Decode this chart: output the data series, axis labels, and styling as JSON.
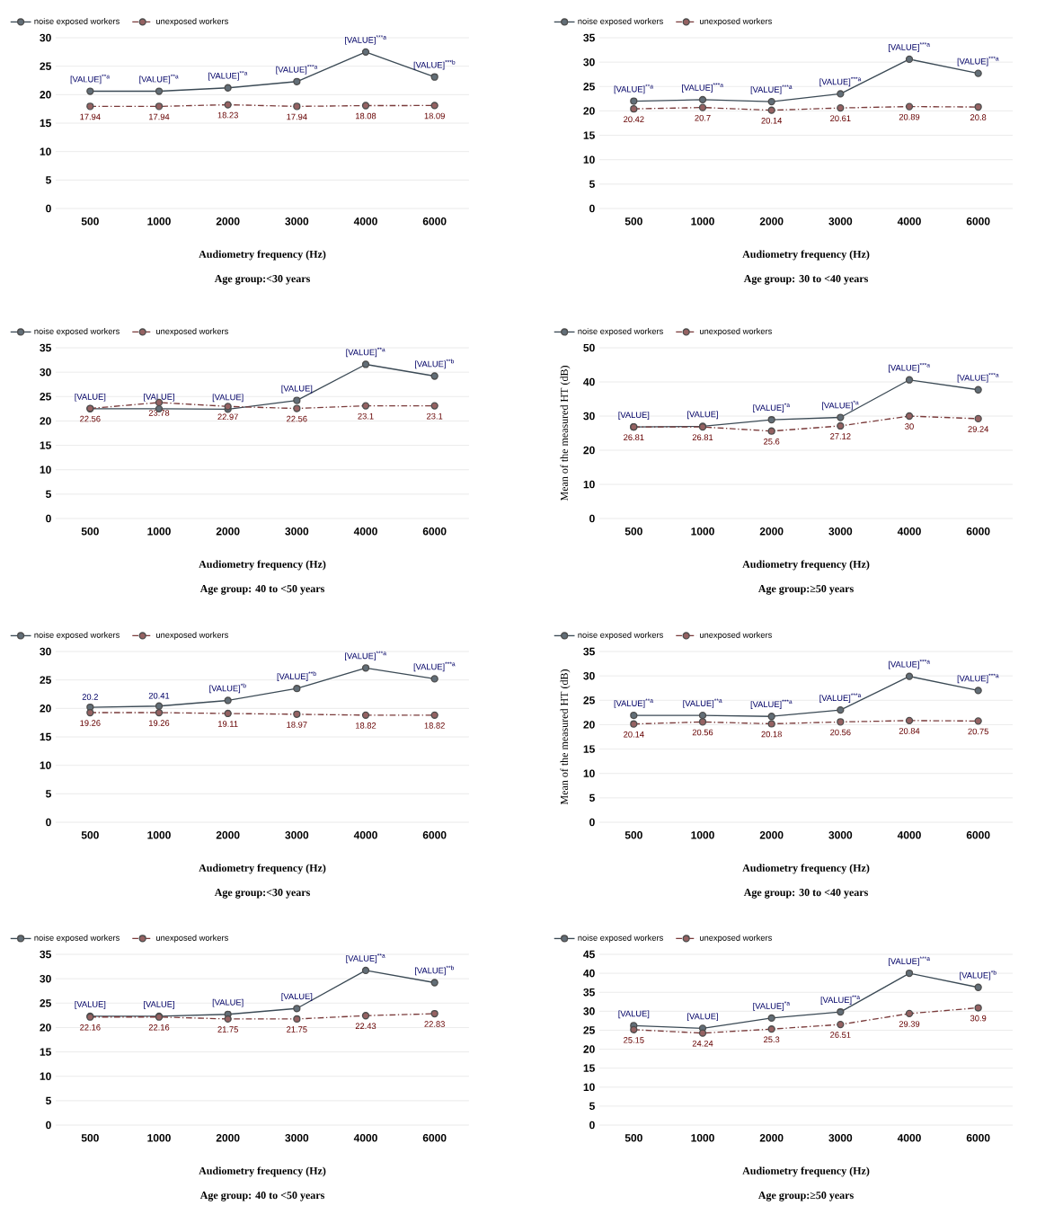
{
  "chart_data": [
    {
      "type": "line",
      "categories": [
        "500",
        "1000",
        "2000",
        "3000",
        "4000",
        "6000"
      ],
      "ylim": [
        0,
        30
      ],
      "yticks": [
        0,
        5,
        10,
        15,
        20,
        25,
        30
      ],
      "grid": "y",
      "legend": "top left",
      "marker": "circle",
      "xlabel": "Audiometry frequency (Hz)",
      "annotations": [
        "Age group:<30 years"
      ],
      "series": [
        {
          "name": "noise exposed workers",
          "color": "#3b4a55",
          "line_style": "solid",
          "values": [
            20.6,
            20.6,
            21.2,
            22.3,
            27.5,
            23.1
          ],
          "value_labels": [
            "[VALUE]$^{**a}$",
            "[VALUE]$^{**a}$",
            "[VALUE]$^{**a}$",
            "[VALUE]$^{***a}$",
            "[VALUE]$^{***a}$",
            "[VALUE]$^{***b}$"
          ]
        },
        {
          "name": "unexposed workers",
          "color": "#7a3b3b",
          "line_style": "dashed",
          "values": [
            17.94,
            17.94,
            18.23,
            17.94,
            18.08,
            18.09
          ],
          "value_labels": [
            "17.94",
            "17.94",
            "18.23",
            "17.94",
            "18.08",
            "18.09"
          ]
        }
      ]
    },
    {
      "type": "line",
      "categories": [
        "500",
        "1000",
        "2000",
        "3000",
        "4000",
        "6000"
      ],
      "ylim": [
        0,
        35
      ],
      "yticks": [
        0,
        5,
        10,
        15,
        20,
        25,
        30,
        35
      ],
      "grid": "y",
      "legend": "top left",
      "marker": "circle",
      "xlabel": "Audiometry frequency (Hz)",
      "annotations": [
        "Age group: 30 to <40 years"
      ],
      "series": [
        {
          "name": "noise exposed workers",
          "color": "#3b4a55",
          "line_style": "solid",
          "values": [
            22.0,
            22.3,
            21.9,
            23.5,
            30.6,
            27.7
          ],
          "value_labels": [
            "[VALUE]$^{**a}$",
            "[VALUE]$^{***a}$",
            "[VALUE]$^{***a}$",
            "[VALUE]$^{***a}$",
            "[VALUE]$^{***a}$",
            "[VALUE]$^{***a}$"
          ]
        },
        {
          "name": "unexposed workers",
          "color": "#7a3b3b",
          "line_style": "dashed",
          "values": [
            20.42,
            20.7,
            20.14,
            20.61,
            20.89,
            20.8
          ],
          "value_labels": [
            "20.42",
            "20.7",
            "20.14",
            "20.61",
            "20.89",
            "20.8"
          ]
        }
      ]
    },
    {
      "type": "line",
      "categories": [
        "500",
        "1000",
        "2000",
        "3000",
        "4000",
        "6000"
      ],
      "ylim": [
        0,
        35
      ],
      "yticks": [
        0,
        5,
        10,
        15,
        20,
        25,
        30,
        35
      ],
      "grid": "y",
      "legend": "top left",
      "marker": "circle",
      "xlabel": "Audiometry frequency (Hz)",
      "annotations": [
        "Age group: 40 to <50 years"
      ],
      "series": [
        {
          "name": "noise exposed workers",
          "color": "#3b4a55",
          "line_style": "solid",
          "values": [
            22.5,
            22.5,
            22.4,
            24.2,
            31.6,
            29.2
          ],
          "value_labels": [
            "[VALUE]",
            "[VALUE]",
            "[VALUE]",
            "[VALUE]",
            "[VALUE]$^{**a}$",
            "[VALUE]$^{**b}$"
          ]
        },
        {
          "name": "unexposed workers",
          "color": "#7a3b3b",
          "line_style": "dashed",
          "values": [
            22.56,
            23.78,
            22.97,
            22.56,
            23.1,
            23.1
          ],
          "value_labels": [
            "22.56",
            "23.78",
            "22.97",
            "22.56",
            "23.1",
            "23.1"
          ]
        }
      ]
    },
    {
      "type": "line",
      "categories": [
        "500",
        "1000",
        "2000",
        "3000",
        "4000",
        "6000"
      ],
      "ylim": [
        0,
        50
      ],
      "yticks": [
        0,
        10,
        20,
        30,
        40,
        50
      ],
      "grid": "y",
      "legend": "top left",
      "marker": "circle",
      "xlabel": "Audiometry frequency (Hz)",
      "ylabel": "Mean of the measured HT (dB)",
      "annotations": [
        "Age group:≥50 years"
      ],
      "series": [
        {
          "name": "noise exposed workers",
          "color": "#3b4a55",
          "line_style": "solid",
          "values": [
            26.8,
            27.0,
            28.9,
            29.6,
            40.6,
            37.7
          ],
          "value_labels": [
            "[VALUE]",
            "[VALUE]",
            "[VALUE]$^{*a}$",
            "[VALUE]$^{*a}$",
            "[VALUE]$^{***a}$",
            "[VALUE]$^{***a}$"
          ]
        },
        {
          "name": "unexposed workers",
          "color": "#7a3b3b",
          "line_style": "dashed",
          "values": [
            26.81,
            26.81,
            25.6,
            27.12,
            30,
            29.24
          ],
          "value_labels": [
            "26.81",
            "26.81",
            "25.6",
            "27.12",
            "30",
            "29.24"
          ]
        }
      ]
    },
    {
      "type": "line",
      "categories": [
        "500",
        "1000",
        "2000",
        "3000",
        "4000",
        "6000"
      ],
      "ylim": [
        0,
        30
      ],
      "yticks": [
        0,
        5,
        10,
        15,
        20,
        25,
        30
      ],
      "grid": "y",
      "legend": "top left",
      "marker": "circle",
      "xlabel": "Audiometry frequency (Hz)",
      "annotations": [
        "Age group:<30 years"
      ],
      "series": [
        {
          "name": "noise exposed workers",
          "color": "#3b4a55",
          "line_style": "solid",
          "values": [
            20.2,
            20.41,
            21.4,
            23.5,
            27.1,
            25.2
          ],
          "value_labels": [
            "20.2",
            "20.41",
            "[VALUE]$^{*b}$",
            "[VALUE]$^{**b}$",
            "[VALUE]$^{***a}$",
            "[VALUE]$^{***a}$"
          ]
        },
        {
          "name": "unexposed workers",
          "color": "#7a3b3b",
          "line_style": "dashed",
          "values": [
            19.26,
            19.26,
            19.11,
            18.97,
            18.82,
            18.82
          ],
          "value_labels": [
            "19.26",
            "19.26",
            "19.11",
            "18.97",
            "18.82",
            "18.82"
          ]
        }
      ]
    },
    {
      "type": "line",
      "categories": [
        "500",
        "1000",
        "2000",
        "3000",
        "4000",
        "6000"
      ],
      "ylim": [
        0,
        35
      ],
      "yticks": [
        0,
        5,
        10,
        15,
        20,
        25,
        30,
        35
      ],
      "grid": "y",
      "legend": "top left",
      "marker": "circle",
      "xlabel": "Audiometry frequency (Hz)",
      "ylabel": "Mean of the measured HT (dB)",
      "annotations": [
        "Age group: 30 to <40 years"
      ],
      "series": [
        {
          "name": "noise exposed workers",
          "color": "#3b4a55",
          "line_style": "solid",
          "values": [
            21.9,
            21.9,
            21.7,
            23.0,
            29.9,
            27.0
          ],
          "value_labels": [
            "[VALUE]$^{**a}$",
            "[VALUE]$^{**a}$",
            "[VALUE]$^{***a}$",
            "[VALUE]$^{***a}$",
            "[VALUE]$^{***a}$",
            "[VALUE]$^{***a}$"
          ]
        },
        {
          "name": "unexposed workers",
          "color": "#7a3b3b",
          "line_style": "dashed",
          "values": [
            20.14,
            20.56,
            20.18,
            20.56,
            20.84,
            20.75
          ],
          "value_labels": [
            "20.14",
            "20.56",
            "20.18",
            "20.56",
            "20.84",
            "20.75"
          ]
        }
      ]
    },
    {
      "type": "line",
      "categories": [
        "500",
        "1000",
        "2000",
        "3000",
        "4000",
        "6000"
      ],
      "ylim": [
        0,
        35
      ],
      "yticks": [
        0,
        5,
        10,
        15,
        20,
        25,
        30,
        35
      ],
      "grid": "y",
      "legend": "top left",
      "marker": "circle",
      "xlabel": "Audiometry frequency (Hz)",
      "annotations": [
        "Age group: 40 to <50 years"
      ],
      "series": [
        {
          "name": "noise exposed workers",
          "color": "#3b4a55",
          "line_style": "solid",
          "values": [
            22.3,
            22.3,
            22.7,
            23.9,
            31.7,
            29.2
          ],
          "value_labels": [
            "[VALUE]",
            "[VALUE]",
            "[VALUE]",
            "[VALUE]",
            "[VALUE]$^{**a}$",
            "[VALUE]$^{**b}$"
          ]
        },
        {
          "name": "unexposed workers",
          "color": "#7a3b3b",
          "line_style": "dashed",
          "values": [
            22.16,
            22.16,
            21.75,
            21.75,
            22.43,
            22.83
          ],
          "value_labels": [
            "22.16",
            "22.16",
            "21.75",
            "21.75",
            "22.43",
            "22.83"
          ]
        }
      ]
    },
    {
      "type": "line",
      "categories": [
        "500",
        "1000",
        "2000",
        "3000",
        "4000",
        "6000"
      ],
      "ylim": [
        0,
        45
      ],
      "yticks": [
        0,
        5,
        10,
        15,
        20,
        25,
        30,
        35,
        40,
        45
      ],
      "grid": "y",
      "legend": "top left",
      "marker": "circle",
      "xlabel": "Audiometry frequency (Hz)",
      "annotations": [
        "Age group:≥50 years"
      ],
      "series": [
        {
          "name": "noise exposed workers",
          "color": "#3b4a55",
          "line_style": "solid",
          "values": [
            26.2,
            25.5,
            28.2,
            29.8,
            40.0,
            36.3
          ],
          "value_labels": [
            "[VALUE]",
            "[VALUE]",
            "[VALUE]$^{*a}$",
            "[VALUE]$^{**a}$",
            "[VALUE]$^{***a}$",
            "[VALUE]$^{*b}$"
          ]
        },
        {
          "name": "unexposed workers",
          "color": "#7a3b3b",
          "line_style": "dashed",
          "values": [
            25.15,
            24.24,
            25.3,
            26.51,
            29.39,
            30.9
          ],
          "value_labels": [
            "25.15",
            "24.24",
            "25.3",
            "26.51",
            "29.39",
            "30.9"
          ]
        }
      ]
    }
  ]
}
